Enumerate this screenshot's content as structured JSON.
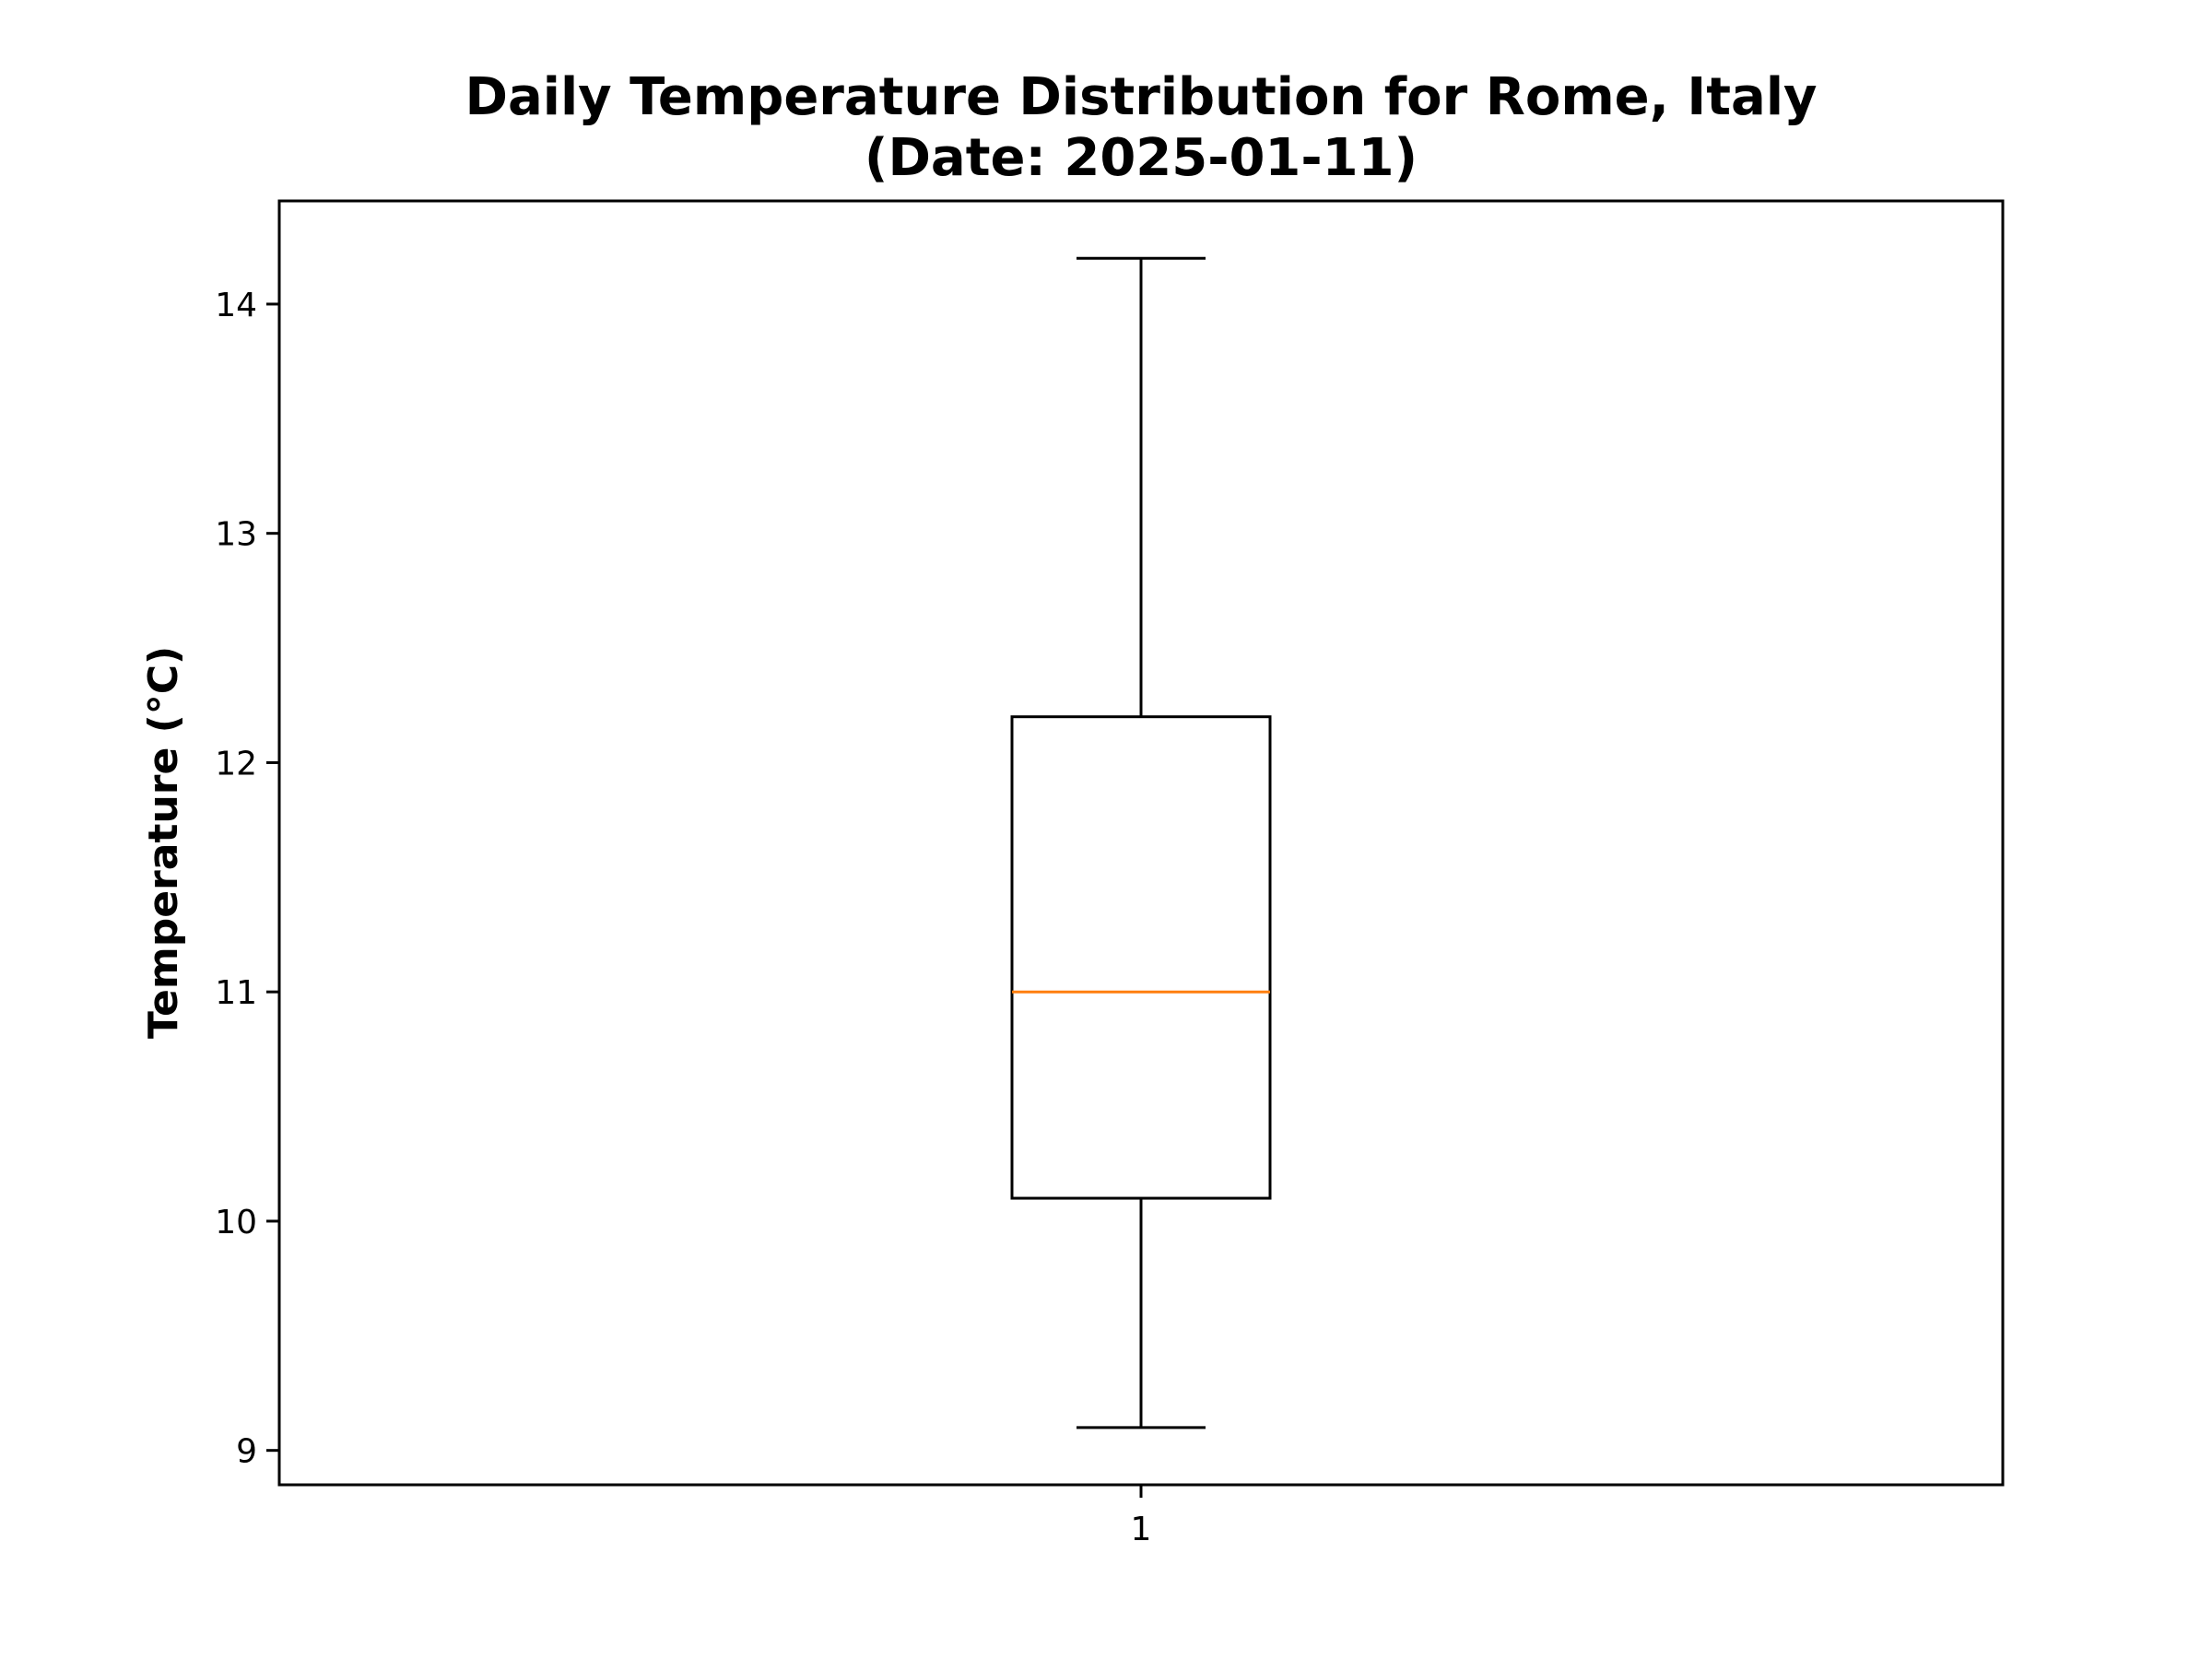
{
  "chart_data": {
    "type": "box",
    "title_line1": "Daily Temperature Distribution for Rome, Italy",
    "title_line2": "(Date: 2025-01-11)",
    "xlabel": "",
    "ylabel": "Temperature (°C)",
    "categories": [
      "1"
    ],
    "boxes": [
      {
        "category": "1",
        "whisker_low": 9.1,
        "q1": 10.1,
        "median": 11.0,
        "q3": 12.2,
        "whisker_high": 14.2
      }
    ],
    "ylim": [
      8.85,
      14.45
    ],
    "yticks": [
      9,
      10,
      11,
      12,
      13,
      14
    ],
    "grid": false,
    "colors": {
      "box": "#000000",
      "median": "#ff7f0e",
      "whisker": "#000000"
    }
  }
}
